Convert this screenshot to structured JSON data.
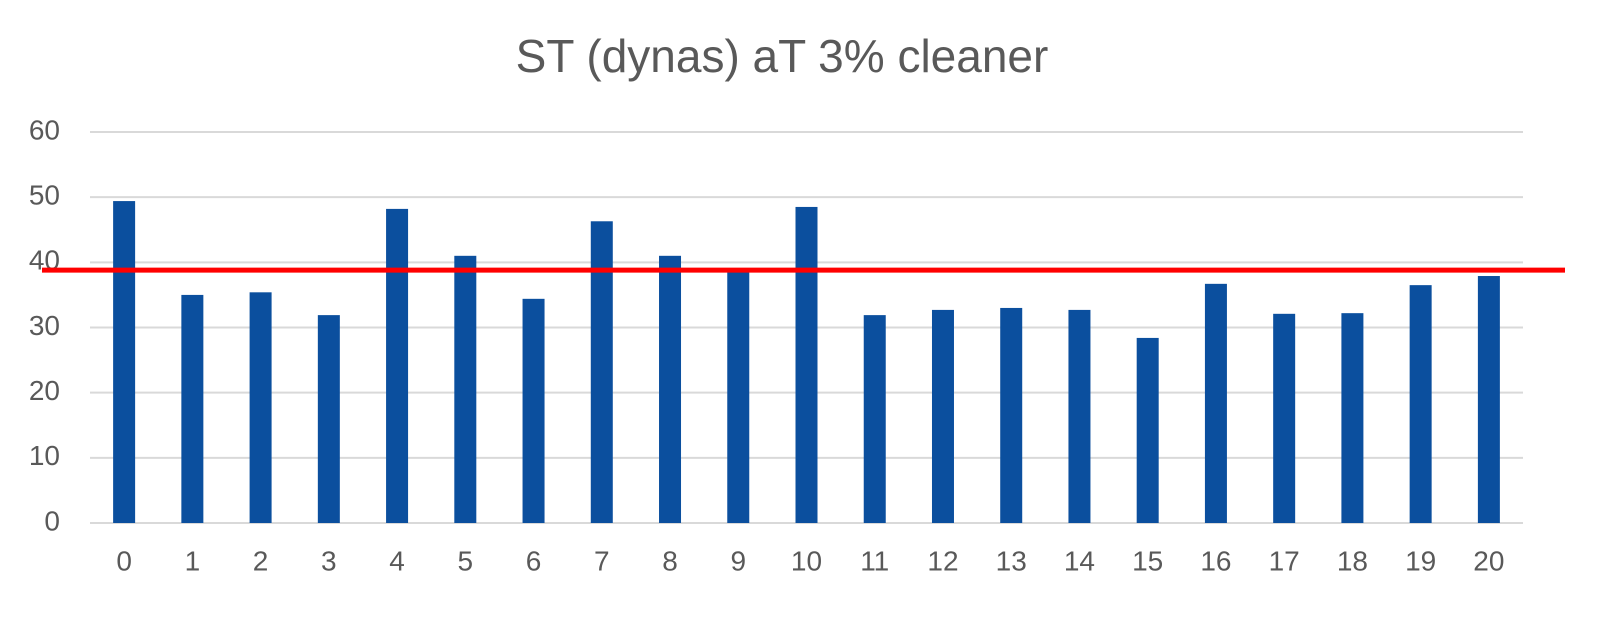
{
  "chart_data": {
    "type": "bar",
    "title": "ST (dynas) aT  3% cleaner",
    "categories": [
      "0",
      "1",
      "2",
      "3",
      "4",
      "5",
      "6",
      "7",
      "8",
      "9",
      "10",
      "11",
      "12",
      "13",
      "14",
      "15",
      "16",
      "17",
      "18",
      "19",
      "20"
    ],
    "values": [
      49.4,
      35.0,
      35.4,
      31.9,
      48.2,
      41.0,
      34.4,
      46.3,
      41.0,
      39.0,
      48.5,
      31.9,
      32.7,
      33.0,
      32.7,
      28.4,
      36.7,
      32.1,
      32.2,
      36.5,
      37.9
    ],
    "color": "#0b4f9e",
    "ylim": [
      0,
      60
    ],
    "yticks": [
      0,
      10,
      20,
      30,
      40,
      50,
      60
    ],
    "grid": true,
    "reference_line": {
      "value": 38.8,
      "color": "#ff0000"
    }
  }
}
